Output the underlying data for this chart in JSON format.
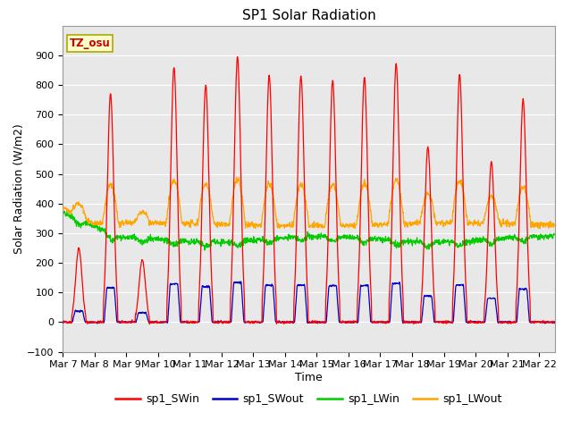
{
  "title": "SP1 Solar Radiation",
  "xlabel": "Time",
  "ylabel": "Solar Radiation (W/m2)",
  "ylim": [
    -100,
    1000
  ],
  "n_days": 15.5,
  "xtick_labels": [
    "Mar 7",
    "Mar 8",
    "Mar 9",
    "Mar 10",
    "Mar 11",
    "Mar 12",
    "Mar 13",
    "Mar 14",
    "Mar 15",
    "Mar 16",
    "Mar 17",
    "Mar 18",
    "Mar 19",
    "Mar 20",
    "Mar 21",
    "Mar 22"
  ],
  "colors": {
    "sp1_SWin": "#ff0000",
    "sp1_SWout": "#0000cc",
    "sp1_LWin": "#00cc00",
    "sp1_LWout": "#ffa500"
  },
  "legend_labels": [
    "sp1_SWin",
    "sp1_SWout",
    "sp1_LWin",
    "sp1_LWout"
  ],
  "tz_label": "TZ_osu",
  "bg_color": "#e8e8e8",
  "title_fontsize": 11,
  "label_fontsize": 9,
  "tick_fontsize": 8,
  "sw_peaks": [
    250,
    770,
    210,
    860,
    800,
    895,
    830,
    830,
    815,
    825,
    870,
    590,
    835,
    540,
    750
  ],
  "lwin_base": 280,
  "lwout_base": 330
}
